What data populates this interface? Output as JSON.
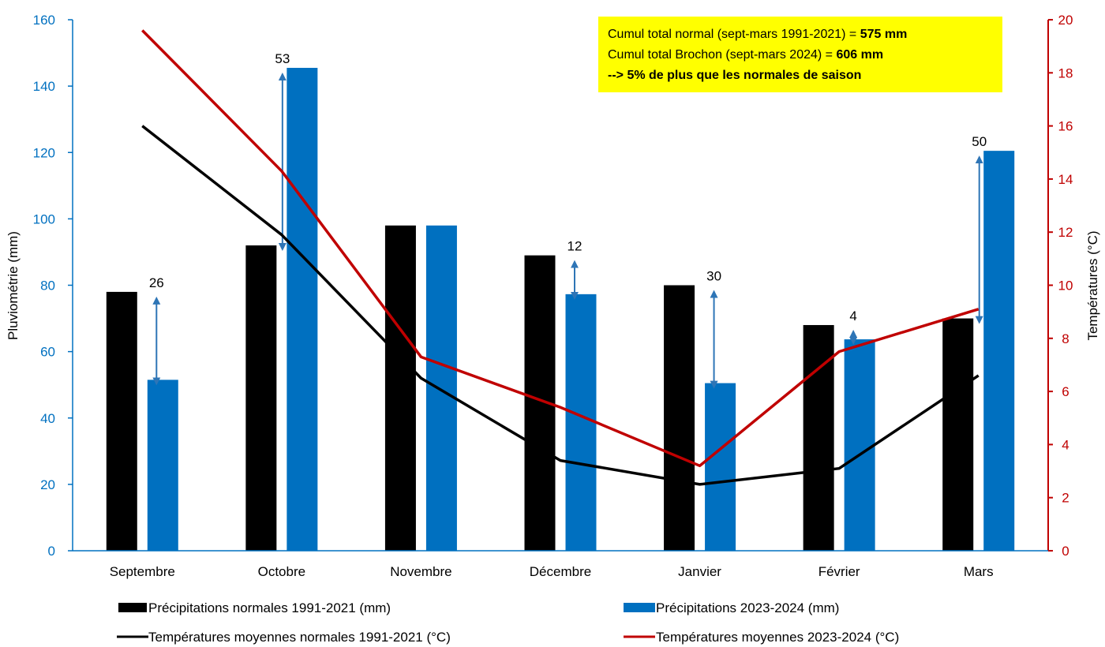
{
  "chart_data": {
    "type": "bar",
    "categories": [
      "Septembre",
      "Octobre",
      "Novembre",
      "Décembre",
      "Janvier",
      "Février",
      "Mars"
    ],
    "series": [
      {
        "name": "Précipitations normales 1991-2021 (mm)",
        "kind": "bar",
        "axis": "left",
        "color": "#000000",
        "values": [
          78,
          92,
          98,
          89,
          80,
          68,
          70
        ]
      },
      {
        "name": "Précipitations 2023-2024 (mm)",
        "kind": "bar",
        "axis": "left",
        "color": "#0070C0",
        "values": [
          51.5,
          145.5,
          98,
          77.3,
          50.5,
          63.7,
          120.5
        ]
      },
      {
        "name": "Températures moyennes normales 1991-2021 (°C)",
        "kind": "line",
        "axis": "right",
        "color": "#000000",
        "values": [
          16,
          11.9,
          6.5,
          3.4,
          2.5,
          3.1,
          6.6
        ]
      },
      {
        "name": "Températures moyennes 2023-2024 (°C)",
        "kind": "line",
        "axis": "right",
        "color": "#C00000",
        "values": [
          19.6,
          14.3,
          7.3,
          5.4,
          3.2,
          7.5,
          9.1
        ]
      }
    ],
    "differences": [
      "26",
      "53",
      "",
      "12",
      "30",
      "4",
      "50"
    ],
    "ylabel": "Pluviométrie (mm)",
    "ylabel_right": "Températures (°C)",
    "ylim": [
      0,
      160
    ],
    "ylim_right": [
      0,
      20
    ],
    "yticks": [
      "0",
      "20",
      "40",
      "60",
      "80",
      "100",
      "120",
      "140",
      "160"
    ],
    "yticks_right": [
      "0",
      "2",
      "4",
      "6",
      "8",
      "10",
      "12",
      "14",
      "16",
      "18",
      "20"
    ],
    "grid": false,
    "legend_position": "bottom",
    "annotation": {
      "line1_prefix": "Cumul total normal (sept-mars 1991-2021) = ",
      "line1_value": "575 mm",
      "line2_prefix": "Cumul total Brochon (sept-mars 2024) = ",
      "line2_value": "606 mm",
      "line3": "--> 5% de plus que les normales de saison",
      "background": "#FFFF00"
    }
  }
}
